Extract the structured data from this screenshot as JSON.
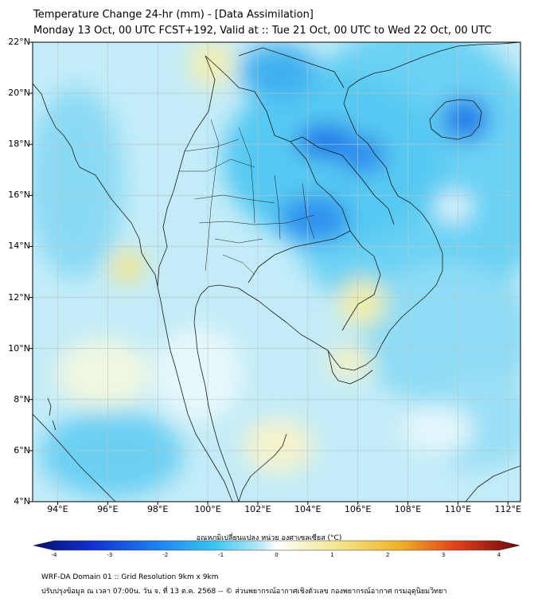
{
  "header": {
    "title_line1": "Temperature Change 24-hr (mm) - [Data Assimilation]",
    "title_line2": "Monday 13 Oct, 00 UTC FCST+192, Valid at :: Tue 21 Oct, 00 UTC to Wed 22 Oct, 00 UTC"
  },
  "map": {
    "lat_labels": [
      "22°N",
      "20°N",
      "18°N",
      "16°N",
      "14°N",
      "12°N",
      "10°N",
      "8°N",
      "6°N",
      "4°N"
    ],
    "lon_labels": [
      "94°E",
      "96°E",
      "98°E",
      "100°E",
      "102°E",
      "104°E",
      "106°E",
      "108°E",
      "110°E",
      "112°E"
    ],
    "anomalies": [
      {
        "region": "Laos / northern Vietnam",
        "value": -2.6
      },
      {
        "region": "Hainan",
        "value": -2.5
      },
      {
        "region": "Northeast Thailand",
        "value": -2.2
      },
      {
        "region": "Gulf of Tonkin",
        "value": -1.8
      },
      {
        "region": "South China Sea (east)",
        "value": -1.6
      },
      {
        "region": "Andaman Sea (south)",
        "value": -1.4
      },
      {
        "region": "Bay of Bengal (west)",
        "value": -1.3
      },
      {
        "region": "Andaman Sea (north)",
        "value": 0.9
      },
      {
        "region": "Southern Cambodia / Mekong Delta",
        "value": 0.8
      },
      {
        "region": "Gulf of Thailand (south)",
        "value": 0.5
      },
      {
        "region": "Myanmar (north)",
        "value": 0.6
      }
    ]
  },
  "colorbar": {
    "caption": "อุณหภูมิเปลี่ยนแปลง หน่วย องศาเซลเซียส (°C)",
    "ticks": [
      "-4",
      "-3",
      "-2",
      "-1",
      "0",
      "1",
      "2",
      "3",
      "4"
    ],
    "min": -4,
    "max": 4
  },
  "footer": {
    "line1": "WRF-DA Domain 01 :: Grid Resolution 9km x 9km",
    "line2": "ปรับปรุงข้อมูล ณ เวลา 07:00น. วัน จ. ที่ 13 ต.ค. 2568 -- © ส่วนพยากรณ์อากาศเชิงตัวเลข กองพยากรณ์อากาศ กรมอุตุนิยมวิทยา"
  }
}
